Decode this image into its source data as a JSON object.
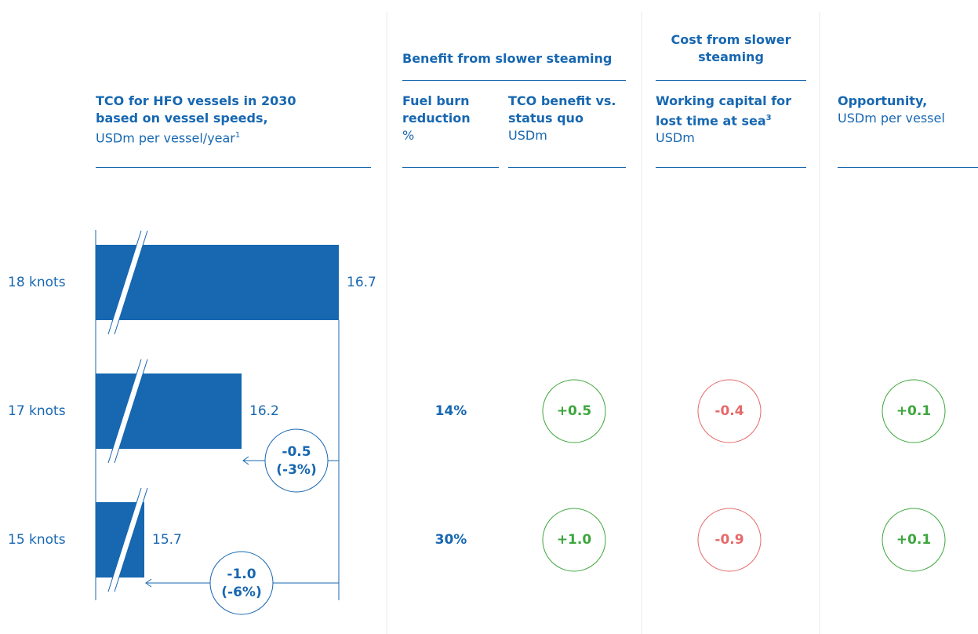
{
  "chart_data": {
    "type": "bar",
    "title": "TCO for HFO vessels in 2030 based on vessel speeds,",
    "subtitle": "USDm per vessel/year",
    "subtitle_footnote": "1",
    "categories": [
      "18 knots",
      "17 knots",
      "15 knots"
    ],
    "values": [
      16.7,
      16.2,
      15.7
    ],
    "color": "#1767b1",
    "xlim": [
      15.45,
      16.7
    ],
    "differences": {
      "values": [
        -0.5,
        -1.0
      ],
      "value_labels": [
        "-0.5",
        "-1.0"
      ],
      "percent": [
        -3,
        -6
      ],
      "percent_labels": [
        "(-3%)",
        "(-6%)"
      ]
    }
  },
  "table": {
    "group_headers": [
      "Benefit from slower steaming",
      "Cost from slower steaming"
    ],
    "columns": [
      {
        "title": "Fuel burn reduction",
        "unit": "%"
      },
      {
        "title": "TCO benefit vs. status quo",
        "unit": "USDm"
      },
      {
        "title": "Working capital for lost time at sea",
        "footnote": "3",
        "unit": "USDm"
      },
      {
        "title": "Opportunity,",
        "unit": "USDm per vessel"
      }
    ],
    "rows": [
      [
        "14%",
        "+0.5",
        "-0.4",
        "+0.1"
      ],
      [
        "30%",
        "+1.0",
        "-0.9",
        "+0.1"
      ]
    ],
    "positive_color": "#3da63d",
    "negative_color": "#e56a6a"
  }
}
